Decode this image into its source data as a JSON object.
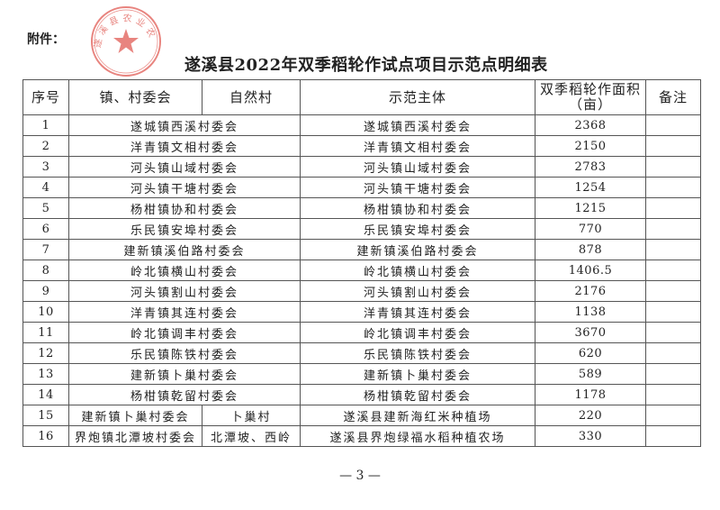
{
  "attachment_label": "附件：",
  "title": "遂溪县2022年双季稻轮作试点项目示范点明细表",
  "stamp": {
    "text": "遂溪县农业农",
    "color": "#d9342b"
  },
  "table": {
    "headers": [
      "序号",
      "镇、村委会",
      "自然村",
      "示范主体",
      "双季稻轮作面积（亩）",
      "备注"
    ],
    "header_area_line1": "双季稻轮作面积",
    "header_area_line2": "（亩）",
    "rows": [
      {
        "no": "1",
        "town": "遂城镇西溪村委会",
        "village": "",
        "entity": "遂城镇西溪村委会",
        "area": "2368",
        "note": ""
      },
      {
        "no": "2",
        "town": "洋青镇文相村委会",
        "village": "",
        "entity": "洋青镇文相村委会",
        "area": "2150",
        "note": ""
      },
      {
        "no": "3",
        "town": "河头镇山域村委会",
        "village": "",
        "entity": "河头镇山域村委会",
        "area": "2783",
        "note": ""
      },
      {
        "no": "4",
        "town": "河头镇干塘村委会",
        "village": "",
        "entity": "河头镇干塘村委会",
        "area": "1254",
        "note": ""
      },
      {
        "no": "5",
        "town": "杨柑镇协和村委会",
        "village": "",
        "entity": "杨柑镇协和村委会",
        "area": "1215",
        "note": ""
      },
      {
        "no": "6",
        "town": "乐民镇安埠村委会",
        "village": "",
        "entity": "乐民镇安埠村委会",
        "area": "770",
        "note": ""
      },
      {
        "no": "7",
        "town": "建新镇溪伯路村委会",
        "village": "",
        "entity": "建新镇溪伯路村委会",
        "area": "878",
        "note": ""
      },
      {
        "no": "8",
        "town": "岭北镇横山村委会",
        "village": "",
        "entity": "岭北镇横山村委会",
        "area": "1406.5",
        "note": ""
      },
      {
        "no": "9",
        "town": "河头镇割山村委会",
        "village": "",
        "entity": "河头镇割山村委会",
        "area": "2176",
        "note": ""
      },
      {
        "no": "10",
        "town": "洋青镇其连村委会",
        "village": "",
        "entity": "洋青镇其连村委会",
        "area": "1138",
        "note": ""
      },
      {
        "no": "11",
        "town": "岭北镇调丰村委会",
        "village": "",
        "entity": "岭北镇调丰村委会",
        "area": "3670",
        "note": ""
      },
      {
        "no": "12",
        "town": "乐民镇陈铁村委会",
        "village": "",
        "entity": "乐民镇陈铁村委会",
        "area": "620",
        "note": ""
      },
      {
        "no": "13",
        "town": "建新镇卜巢村委会",
        "village": "",
        "entity": "建新镇卜巢村委会",
        "area": "589",
        "note": ""
      },
      {
        "no": "14",
        "town": "杨柑镇乾留村委会",
        "village": "",
        "entity": "杨柑镇乾留村委会",
        "area": "1178",
        "note": ""
      },
      {
        "no": "15",
        "town": "建新镇卜巢村委会",
        "village": "卜巢村",
        "entity": "遂溪县建新海红米种植场",
        "area": "220",
        "note": ""
      },
      {
        "no": "16",
        "town": "界炮镇北潭坡村委会",
        "village": "北潭坡、西岭",
        "entity": "遂溪县界炮绿福水稻种植农场",
        "area": "330",
        "note": ""
      }
    ]
  },
  "page_number": "— 3 —"
}
